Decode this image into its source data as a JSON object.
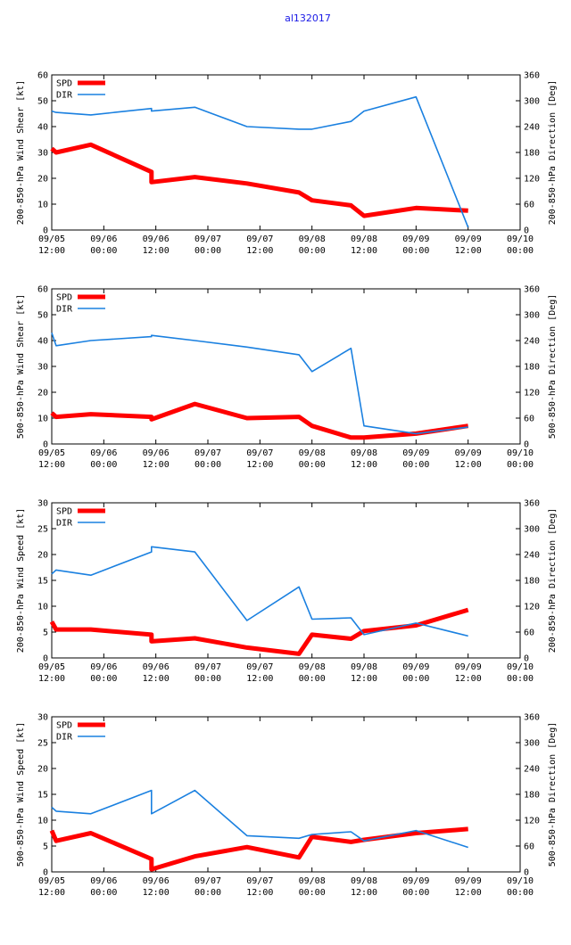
{
  "colors": {
    "spd": "#ff0000",
    "dir": "#1a80e0",
    "title": "#1a1ae6",
    "axis": "#000000"
  },
  "chart_data": {
    "title": "al132017",
    "type": "line",
    "x_ticks": [
      {
        "x": 0,
        "date": "09/05",
        "time": "12:00"
      },
      {
        "x": 12,
        "date": "09/06",
        "time": "00:00"
      },
      {
        "x": 24,
        "date": "09/06",
        "time": "12:00"
      },
      {
        "x": 36,
        "date": "09/07",
        "time": "00:00"
      },
      {
        "x": 48,
        "date": "09/07",
        "time": "12:00"
      },
      {
        "x": 60,
        "date": "09/08",
        "time": "00:00"
      },
      {
        "x": 72,
        "date": "09/08",
        "time": "12:00"
      },
      {
        "x": 84,
        "date": "09/09",
        "time": "00:00"
      },
      {
        "x": 96,
        "date": "09/09",
        "time": "12:00"
      },
      {
        "x": 108,
        "date": "09/10",
        "time": "00:00"
      }
    ],
    "xlim": [
      0,
      108
    ],
    "panels": [
      {
        "ylabel_left": "200-850-hPa Wind Shear [kt]",
        "ylabel_right": "200-850-hPa Direction [Deg]",
        "ylim_left": [
          0,
          60
        ],
        "left_ticks": [
          "0",
          "10",
          "20",
          "30",
          "40",
          "50",
          "60"
        ],
        "ylim_right": [
          0,
          360
        ],
        "right_ticks": [
          "0",
          "60",
          "120",
          "180",
          "240",
          "300",
          "360"
        ],
        "legend": [
          "SPD",
          "DIR"
        ],
        "series": [
          {
            "name": "SPD",
            "axis": "left",
            "x": [
              0,
              1,
              9,
              23,
              23,
              33,
              45,
              57,
              60,
              69,
              72,
              84,
              96
            ],
            "y": [
              31.5,
              30,
              33,
              22.5,
              18.5,
              20.5,
              18,
              14.5,
              11.5,
              9.5,
              5.5,
              8.5,
              7.5
            ]
          },
          {
            "name": "DIR",
            "axis": "right",
            "x": [
              0,
              1,
              9,
              23,
              23,
              33,
              45,
              57,
              60,
              69,
              72,
              84,
              96
            ],
            "y": [
              276,
              273,
              267,
              282,
              276,
              285,
              240,
              234,
              234,
              252,
              276,
              309,
              6
            ]
          }
        ]
      },
      {
        "ylabel_left": "500-850-hPa Wind Shear [kt]",
        "ylabel_right": "500-850-hPa Direction [Deg]",
        "ylim_left": [
          0,
          60
        ],
        "left_ticks": [
          "0",
          "10",
          "20",
          "30",
          "40",
          "50",
          "60"
        ],
        "ylim_right": [
          0,
          360
        ],
        "right_ticks": [
          "0",
          "60",
          "120",
          "180",
          "240",
          "300",
          "360"
        ],
        "legend": [
          "SPD",
          "DIR"
        ],
        "series": [
          {
            "name": "SPD",
            "axis": "left",
            "x": [
              0,
              1,
              9,
              23,
              23,
              33,
              45,
              57,
              60,
              69,
              72,
              84,
              96
            ],
            "y": [
              12,
              10.5,
              11.5,
              10.5,
              9.5,
              15.5,
              10,
              10.5,
              7,
              2.5,
              2.5,
              4,
              7
            ]
          },
          {
            "name": "DIR",
            "axis": "right",
            "x": [
              0,
              1,
              9,
              23,
              23,
              33,
              45,
              57,
              60,
              69,
              72,
              84,
              96
            ],
            "y": [
              258,
              228,
              240,
              249,
              252,
              240,
              225,
              207,
              168,
              222,
              42,
              24,
              39
            ]
          }
        ]
      },
      {
        "ylabel_left": "200-850-hPa Wind Speed [kt]",
        "ylabel_right": "200-850-hPa Direction [Deg]",
        "ylim_left": [
          0,
          30
        ],
        "left_ticks": [
          "0",
          "5",
          "10",
          "15",
          "20",
          "25",
          "30"
        ],
        "ylim_right": [
          0,
          360
        ],
        "right_ticks": [
          "0",
          "60",
          "120",
          "180",
          "240",
          "300",
          "360"
        ],
        "legend": [
          "SPD",
          "DIR"
        ],
        "series": [
          {
            "name": "SPD",
            "axis": "left",
            "x": [
              0,
              1,
              9,
              23,
              23,
              33,
              45,
              57,
              60,
              69,
              72,
              84,
              96
            ],
            "y": [
              7,
              5.5,
              5.5,
              4.5,
              3.2,
              3.8,
              2,
              0.8,
              4.5,
              3.7,
              5.2,
              6.3,
              9.3
            ]
          },
          {
            "name": "DIR",
            "axis": "right",
            "x": [
              0,
              1,
              9,
              23,
              23,
              33,
              45,
              57,
              60,
              69,
              72,
              84,
              96
            ],
            "y": [
              195,
              204,
              192,
              246,
              258,
              246,
              87,
              165,
              90,
              93,
              54,
              81,
              51
            ]
          }
        ]
      },
      {
        "ylabel_left": "500-850-hPa Wind Speed [kt]",
        "ylabel_right": "500-850-hPa Direction [Deg]",
        "ylim_left": [
          0,
          30
        ],
        "left_ticks": [
          "0",
          "5",
          "10",
          "15",
          "20",
          "25",
          "30"
        ],
        "ylim_right": [
          0,
          360
        ],
        "right_ticks": [
          "0",
          "60",
          "120",
          "180",
          "240",
          "300",
          "360"
        ],
        "legend": [
          "SPD",
          "DIR"
        ],
        "series": [
          {
            "name": "SPD",
            "axis": "left",
            "x": [
              0,
              1,
              9,
              23,
              23,
              33,
              45,
              57,
              60,
              69,
              72,
              84,
              96
            ],
            "y": [
              8,
              6,
              7.5,
              2.5,
              0.5,
              3,
              4.8,
              2.8,
              6.8,
              5.8,
              6.2,
              7.5,
              8.3
            ]
          },
          {
            "name": "DIR",
            "axis": "right",
            "x": [
              0,
              1,
              9,
              23,
              23,
              33,
              45,
              57,
              60,
              69,
              72,
              84,
              96
            ],
            "y": [
              150,
              141,
              135,
              189,
              135,
              189,
              84,
              78,
              87,
              93,
              72,
              96,
              57
            ]
          }
        ]
      }
    ]
  }
}
